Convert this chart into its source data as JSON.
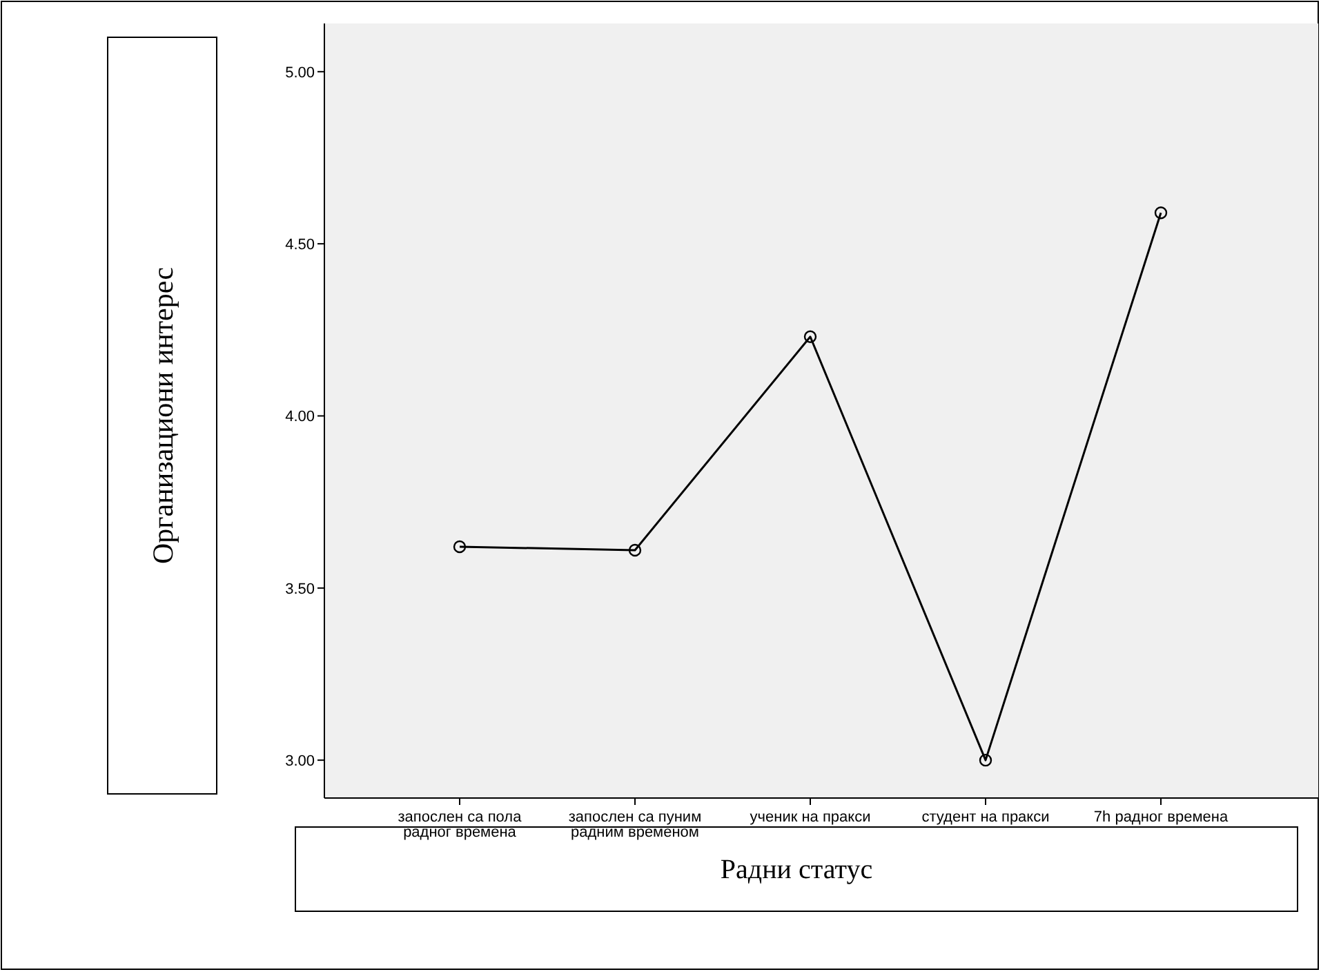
{
  "chart_data": {
    "type": "line",
    "xlabel": "Радни статус",
    "ylabel": "Организациони интерес",
    "categories": [
      "запослен са пола\nрадног времена",
      "запослен са пуним\nрадним временом",
      "ученик на пракси",
      "студент на пракси",
      "7h радног времена"
    ],
    "series": [
      {
        "color": "#000000",
        "values": [
          3.62,
          3.61,
          4.23,
          3.0,
          4.59
        ]
      }
    ],
    "ylim": [
      2.89,
      5.14
    ],
    "yticks": [
      {
        "value": 3,
        "label": "3.00"
      },
      {
        "value": 3.5,
        "label": "3.50"
      },
      {
        "value": 4,
        "label": "4.00"
      },
      {
        "value": 4.5,
        "label": "4.50"
      },
      {
        "value": 5,
        "label": "5.00"
      }
    ],
    "grid": false,
    "marker": "circle",
    "line_style": "solid"
  }
}
